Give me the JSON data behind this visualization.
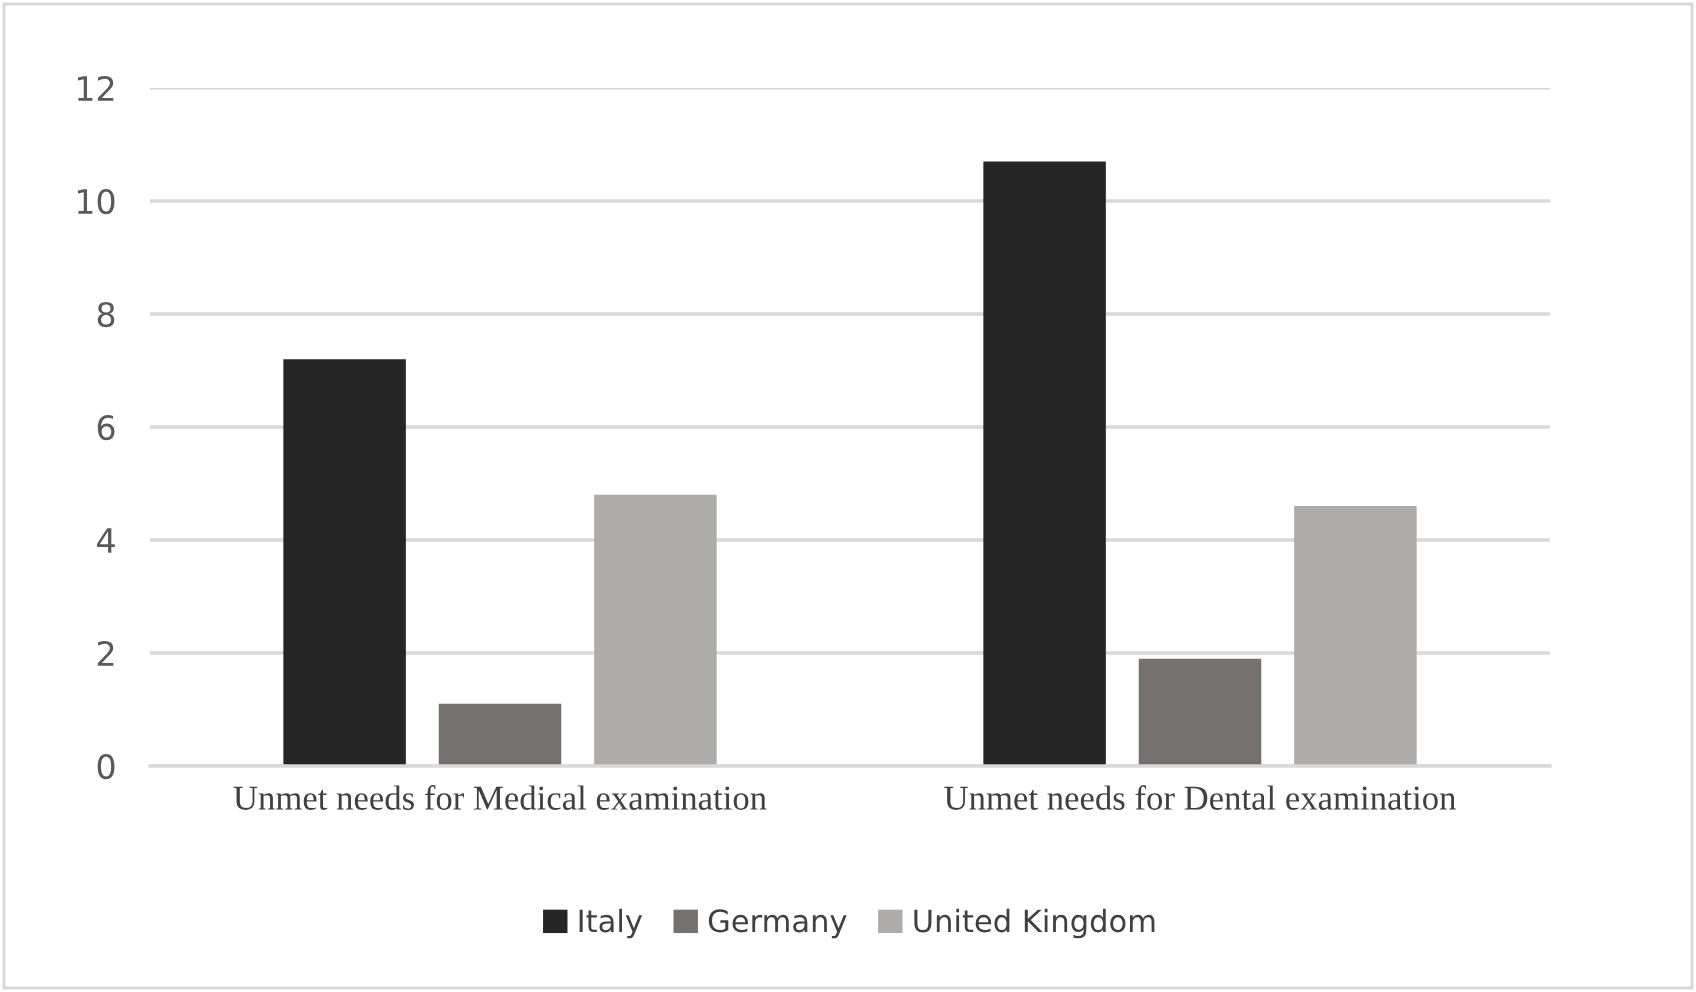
{
  "chart_data": {
    "type": "bar",
    "categories": [
      "Unmet needs for Medical examination",
      "Unmet needs for Dental examination"
    ],
    "series": [
      {
        "name": "Italy",
        "color": "#262626",
        "values": [
          7.2,
          10.7
        ]
      },
      {
        "name": "Germany",
        "color": "#767171",
        "values": [
          1.1,
          1.9
        ]
      },
      {
        "name": "United Kingdom",
        "color": "#aeabab",
        "values": [
          4.8,
          4.6
        ]
      }
    ],
    "ylim": [
      0,
      12
    ],
    "yticks": [
      0,
      2,
      4,
      6,
      8,
      10,
      12
    ],
    "grid": "y",
    "legend": "bottom"
  }
}
